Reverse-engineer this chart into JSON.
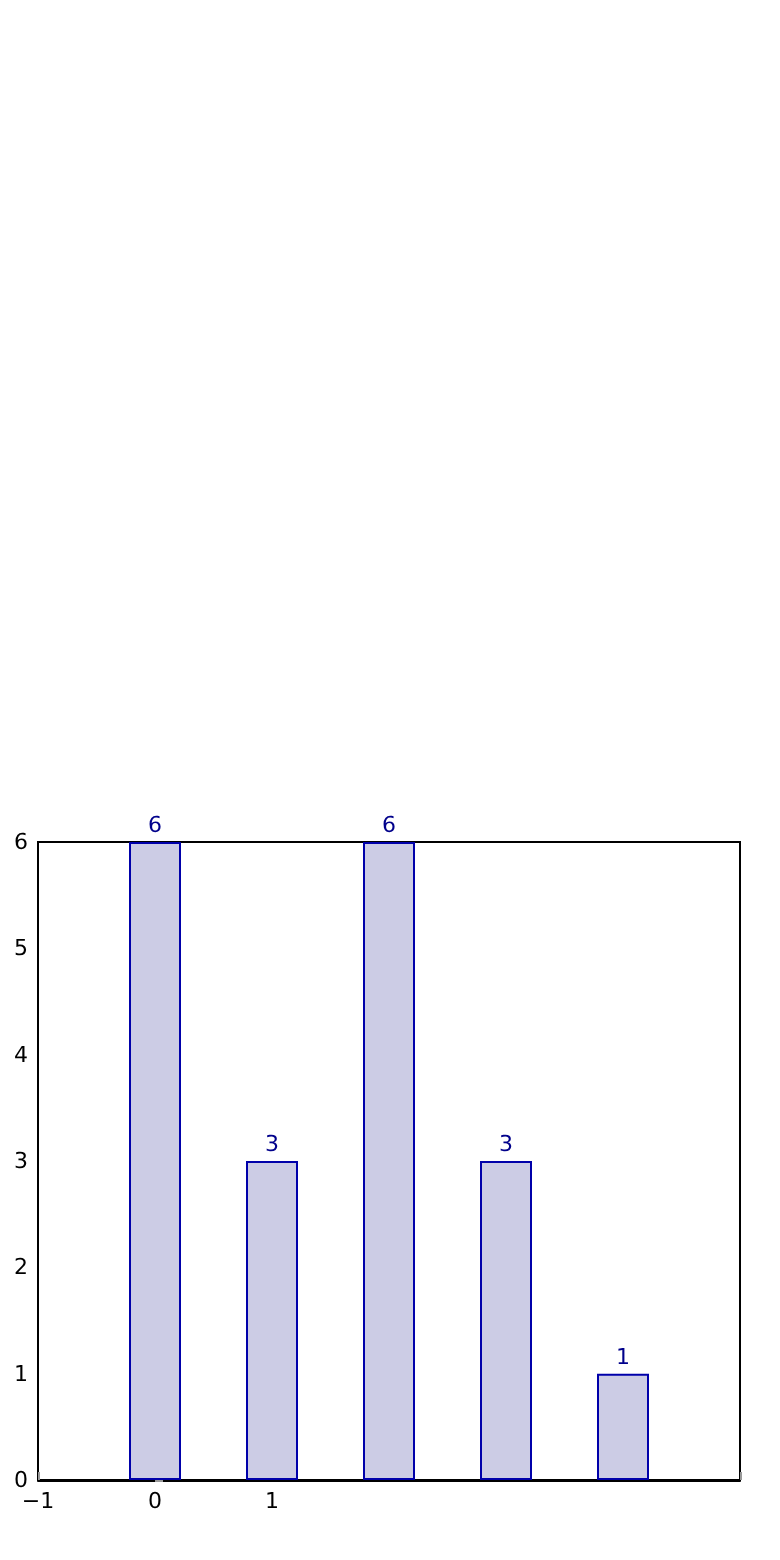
{
  "chart_data": {
    "type": "bar",
    "x": [
      0,
      1,
      2,
      3,
      4
    ],
    "values": [
      6,
      3,
      6,
      3,
      1
    ],
    "color": "#ccccE5",
    "data_labels": true,
    "xlim": [
      -1,
      5
    ],
    "xticks": [
      -1,
      0,
      1,
      {
        "value": 5,
        "label": null
      }
    ],
    "ylim": [
      0,
      6
    ],
    "yticks": [
      0,
      1,
      2,
      3,
      4,
      5,
      6
    ],
    "grid": false
  }
}
